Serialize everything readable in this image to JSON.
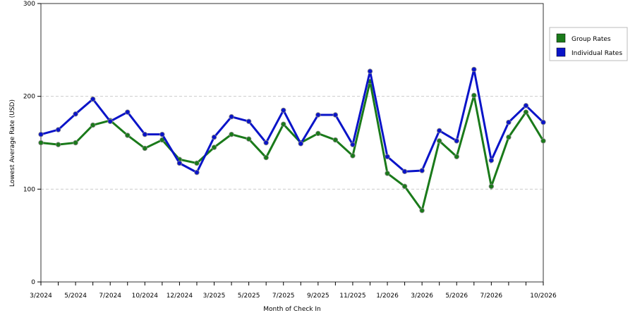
{
  "chart_data": {
    "type": "line",
    "x_label": "Month of Check In",
    "y_label": "Lowest Average Rate (USD)",
    "categories": [
      "3/2024",
      null,
      "5/2024",
      null,
      "7/2024",
      null,
      "10/2024",
      null,
      "12/2024",
      null,
      "3/2025",
      null,
      "5/2025",
      null,
      "7/2025",
      null,
      "9/2025",
      null,
      "11/2025",
      null,
      "1/2026",
      null,
      "3/2026",
      null,
      "5/2026",
      null,
      "7/2026",
      null,
      null,
      "10/2026"
    ],
    "series": [
      {
        "name": "Group Rates",
        "color": "#1a7a1a",
        "values": [
          150,
          148,
          150,
          169,
          174,
          158,
          144,
          153,
          132,
          128,
          145,
          159,
          154,
          134,
          170,
          150,
          160,
          153,
          136,
          216,
          117,
          103,
          77,
          152,
          135,
          201,
          103,
          156,
          183,
          152
        ]
      },
      {
        "name": "Individual Rates",
        "color": "#0a14c8",
        "values": [
          159,
          164,
          181,
          197,
          173,
          183,
          159,
          159,
          128,
          118,
          156,
          178,
          173,
          150,
          185,
          149,
          180,
          180,
          148,
          227,
          135,
          119,
          120,
          163,
          152,
          229,
          131,
          172,
          190,
          172
        ]
      }
    ],
    "ylim": [
      0,
      300
    ],
    "yticks": [
      0,
      100,
      200,
      300
    ],
    "grid": true,
    "legend": "right"
  }
}
